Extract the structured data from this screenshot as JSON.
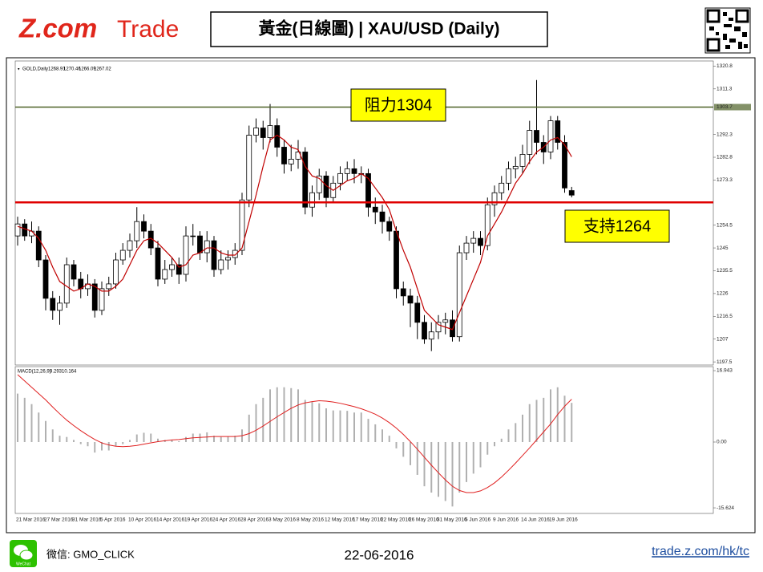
{
  "header": {
    "logo_main": "Z.com",
    "logo_sub": "Trade",
    "title": "黃金(日線圖) | XAU/USD (Daily)"
  },
  "chart_data": [
    {
      "type": "candlestick",
      "title": "GOLD,Daily",
      "categories": [
        "21 Mar 2016",
        null,
        null,
        null,
        "27 Mar 2016",
        null,
        null,
        null,
        "31 Mar 2016",
        null,
        null,
        null,
        "5 Apr 2016",
        null,
        null,
        null,
        "10 Apr 2016",
        null,
        null,
        null,
        "14 Apr 2016",
        null,
        null,
        null,
        "19 Apr 2016",
        null,
        null,
        null,
        "24 Apr 2016",
        null,
        null,
        null,
        "28 Apr 2016",
        null,
        null,
        null,
        "3 May 2016",
        null,
        null,
        null,
        "8 May 2016",
        null,
        null,
        null,
        "12 May 2016",
        null,
        null,
        null,
        "17 May 2016",
        null,
        null,
        null,
        "22 May 2016",
        null,
        null,
        null,
        "26 May 2016",
        null,
        null,
        null,
        "31 May 2016",
        null,
        null,
        null,
        "5 Jun 2016",
        null,
        null,
        null,
        "9 Jun 2016",
        null,
        null,
        null,
        "14 Jun 2016",
        null,
        null,
        null,
        "19 Jun 2016",
        null,
        null,
        null
      ],
      "open": [
        1250,
        1255,
        1250,
        1252,
        1240,
        1224,
        1219,
        1222,
        1238,
        1232,
        1228,
        1230,
        1219,
        1228,
        1230,
        1240,
        1244,
        1248,
        1256,
        1252,
        1245,
        1232,
        1236,
        1238,
        1234,
        1250,
        1250,
        1243,
        1248,
        1236,
        1240,
        1241,
        1244,
        1265,
        1292,
        1295,
        1291,
        1296,
        1287,
        1280,
        1282,
        1285,
        1262,
        1268,
        1275,
        1266,
        1272,
        1276,
        1278,
        1276,
        1276,
        1262,
        1260,
        1256,
        1252,
        1228,
        1225,
        1222,
        1214,
        1207,
        1210,
        1214,
        1215,
        1208,
        1243,
        1247,
        1249,
        1246,
        1263,
        1268,
        1272,
        1278,
        1279,
        1284,
        1294,
        1289,
        1285,
        1298,
        1289,
        1268.91
      ],
      "high": [
        1258,
        1257,
        1256,
        1254,
        1242,
        1227,
        1225,
        1241,
        1240,
        1235,
        1234,
        1232,
        1231,
        1233,
        1243,
        1247,
        1251,
        1262,
        1259,
        1255,
        1248,
        1240,
        1241,
        1241,
        1254,
        1255,
        1252,
        1252,
        1250,
        1244,
        1244,
        1247,
        1268,
        1296,
        1299,
        1298,
        1305,
        1299,
        1290,
        1288,
        1290,
        1287,
        1271,
        1278,
        1277,
        1275,
        1279,
        1281,
        1282,
        1279,
        1278,
        1266,
        1263,
        1258,
        1254,
        1231,
        1228,
        1225,
        1217,
        1214,
        1217,
        1218,
        1219,
        1246,
        1250,
        1252,
        1252,
        1266,
        1271,
        1275,
        1281,
        1283,
        1288,
        1298,
        1315,
        1292,
        1300,
        1300,
        1292,
        1270.46
      ],
      "low": [
        1246,
        1248,
        1247,
        1237,
        1219,
        1215,
        1213,
        1220,
        1229,
        1224,
        1225,
        1216,
        1217,
        1225,
        1228,
        1238,
        1241,
        1245,
        1249,
        1242,
        1229,
        1230,
        1233,
        1230,
        1231,
        1246,
        1240,
        1239,
        1233,
        1234,
        1236,
        1238,
        1242,
        1262,
        1289,
        1286,
        1289,
        1283,
        1276,
        1277,
        1278,
        1259,
        1258,
        1265,
        1262,
        1264,
        1269,
        1273,
        1272,
        1272,
        1258,
        1255,
        1251,
        1248,
        1224,
        1221,
        1212,
        1207,
        1205,
        1202,
        1207,
        1209,
        1206,
        1206,
        1240,
        1243,
        1242,
        1244,
        1258,
        1265,
        1269,
        1274,
        1276,
        1280,
        1284,
        1280,
        1282,
        1286,
        1268,
        1266.09
      ],
      "close": [
        1255,
        1250,
        1252,
        1240,
        1224,
        1219,
        1222,
        1238,
        1232,
        1228,
        1230,
        1219,
        1228,
        1230,
        1240,
        1244,
        1248,
        1256,
        1252,
        1245,
        1232,
        1236,
        1238,
        1234,
        1250,
        1250,
        1243,
        1248,
        1236,
        1240,
        1241,
        1244,
        1265,
        1292,
        1295,
        1291,
        1296,
        1287,
        1280,
        1282,
        1285,
        1262,
        1268,
        1275,
        1266,
        1272,
        1276,
        1278,
        1276,
        1276,
        1262,
        1260,
        1256,
        1252,
        1228,
        1225,
        1222,
        1214,
        1207,
        1210,
        1214,
        1215,
        1208,
        1243,
        1247,
        1249,
        1246,
        1263,
        1268,
        1272,
        1278,
        1279,
        1284,
        1294,
        1289,
        1285,
        1298,
        1289,
        1270,
        1267.02
      ],
      "line": {
        "color": "#c00000",
        "values": [
          1254,
          1253,
          1252,
          1249,
          1244,
          1237,
          1231,
          1229,
          1227,
          1228,
          1230,
          1229,
          1227,
          1227,
          1229,
          1232,
          1238,
          1244,
          1248,
          1249,
          1247,
          1244,
          1241,
          1237,
          1238,
          1242,
          1243,
          1245,
          1245,
          1243,
          1242,
          1242,
          1245,
          1256,
          1267,
          1279,
          1290,
          1292,
          1290,
          1287,
          1286,
          1279,
          1275,
          1274,
          1271,
          1269,
          1271,
          1273,
          1274,
          1276,
          1274,
          1270,
          1266,
          1261,
          1252,
          1244,
          1237,
          1228,
          1219,
          1216,
          1213,
          1212,
          1211,
          1218,
          1225,
          1232,
          1239,
          1250,
          1255,
          1260,
          1266,
          1272,
          1276,
          1281,
          1285,
          1287,
          1290,
          1291,
          1288,
          1283
        ]
      },
      "levels": [
        {
          "value": 1303.7,
          "label": "1303.7",
          "text": "阻力1304",
          "color": "#4f6228"
        },
        {
          "value": 1264,
          "text": "支持1264",
          "color": "#e00000"
        }
      ],
      "ylim": [
        1196.2,
        1322.6
      ],
      "yticks": [
        1197.5,
        1207.0,
        1216.5,
        1226.0,
        1235.5,
        1245.0,
        1254.5,
        1273.3,
        1282.8,
        1292.3,
        1311.3,
        1320.8
      ]
    },
    {
      "type": "macd",
      "title": "MACD(12,26,9)",
      "histogram": {
        "color": "#b0b0b0",
        "values": [
          11.5,
          10.5,
          9,
          7,
          5,
          3,
          1.5,
          1.2,
          0.5,
          -0.5,
          -1,
          -2.5,
          -2,
          -2,
          -1,
          -0.5,
          0.5,
          1.8,
          2.2,
          2,
          0.8,
          0.5,
          0.5,
          0.2,
          1.2,
          2,
          2,
          2.3,
          1.5,
          1.2,
          1.3,
          1.5,
          3,
          6.5,
          9,
          10.5,
          12.5,
          13,
          13,
          12.8,
          12.5,
          10,
          9.5,
          9.2,
          8,
          7.5,
          7.5,
          7.4,
          7,
          7,
          5.5,
          4.2,
          3,
          1.5,
          -1.5,
          -3.5,
          -5.5,
          -7.8,
          -10.5,
          -12,
          -13,
          -14,
          -15.3,
          -12,
          -9.5,
          -7.5,
          -6,
          -3,
          -1,
          0.8,
          3,
          4.5,
          6.5,
          9,
          10,
          10.5,
          12.5,
          13,
          11,
          9.293
        ]
      },
      "signal": {
        "color": "#e02020",
        "values": [
          16,
          14.5,
          13,
          11.5,
          10,
          8.3,
          6.7,
          5.2,
          3.9,
          2.7,
          1.6,
          0.6,
          -0.2,
          -0.7,
          -1,
          -1.1,
          -1,
          -0.8,
          -0.5,
          -0.2,
          0.1,
          0.3,
          0.5,
          0.6,
          0.8,
          1,
          1.1,
          1.2,
          1.3,
          1.3,
          1.3,
          1.3,
          1.5,
          2,
          2.8,
          3.8,
          4.9,
          6,
          7,
          8,
          8.8,
          9.3,
          9.6,
          9.8,
          9.7,
          9.5,
          9.2,
          8.8,
          8.4,
          7.9,
          7.3,
          6.6,
          5.7,
          4.6,
          3.3,
          1.8,
          0.1,
          -1.7,
          -3.6,
          -5.5,
          -7.3,
          -9,
          -10.5,
          -11.5,
          -12,
          -12,
          -11.6,
          -10.8,
          -9.7,
          -8.3,
          -6.7,
          -5,
          -3.2,
          -1.4,
          0.5,
          2.4,
          4.3,
          6.5,
          8.5,
          10.164
        ]
      },
      "ylim": [
        -16.95,
        17.9
      ],
      "yticks": [
        16.943,
        {
          "value": 0,
          "label": "0.00"
        },
        -15.624
      ]
    }
  ],
  "footer": {
    "wechat_icon": "WeChat",
    "wechat": "微信: GMO_CLICK",
    "date": "22-06-2016",
    "link": "trade.z.com/hk/tc"
  }
}
